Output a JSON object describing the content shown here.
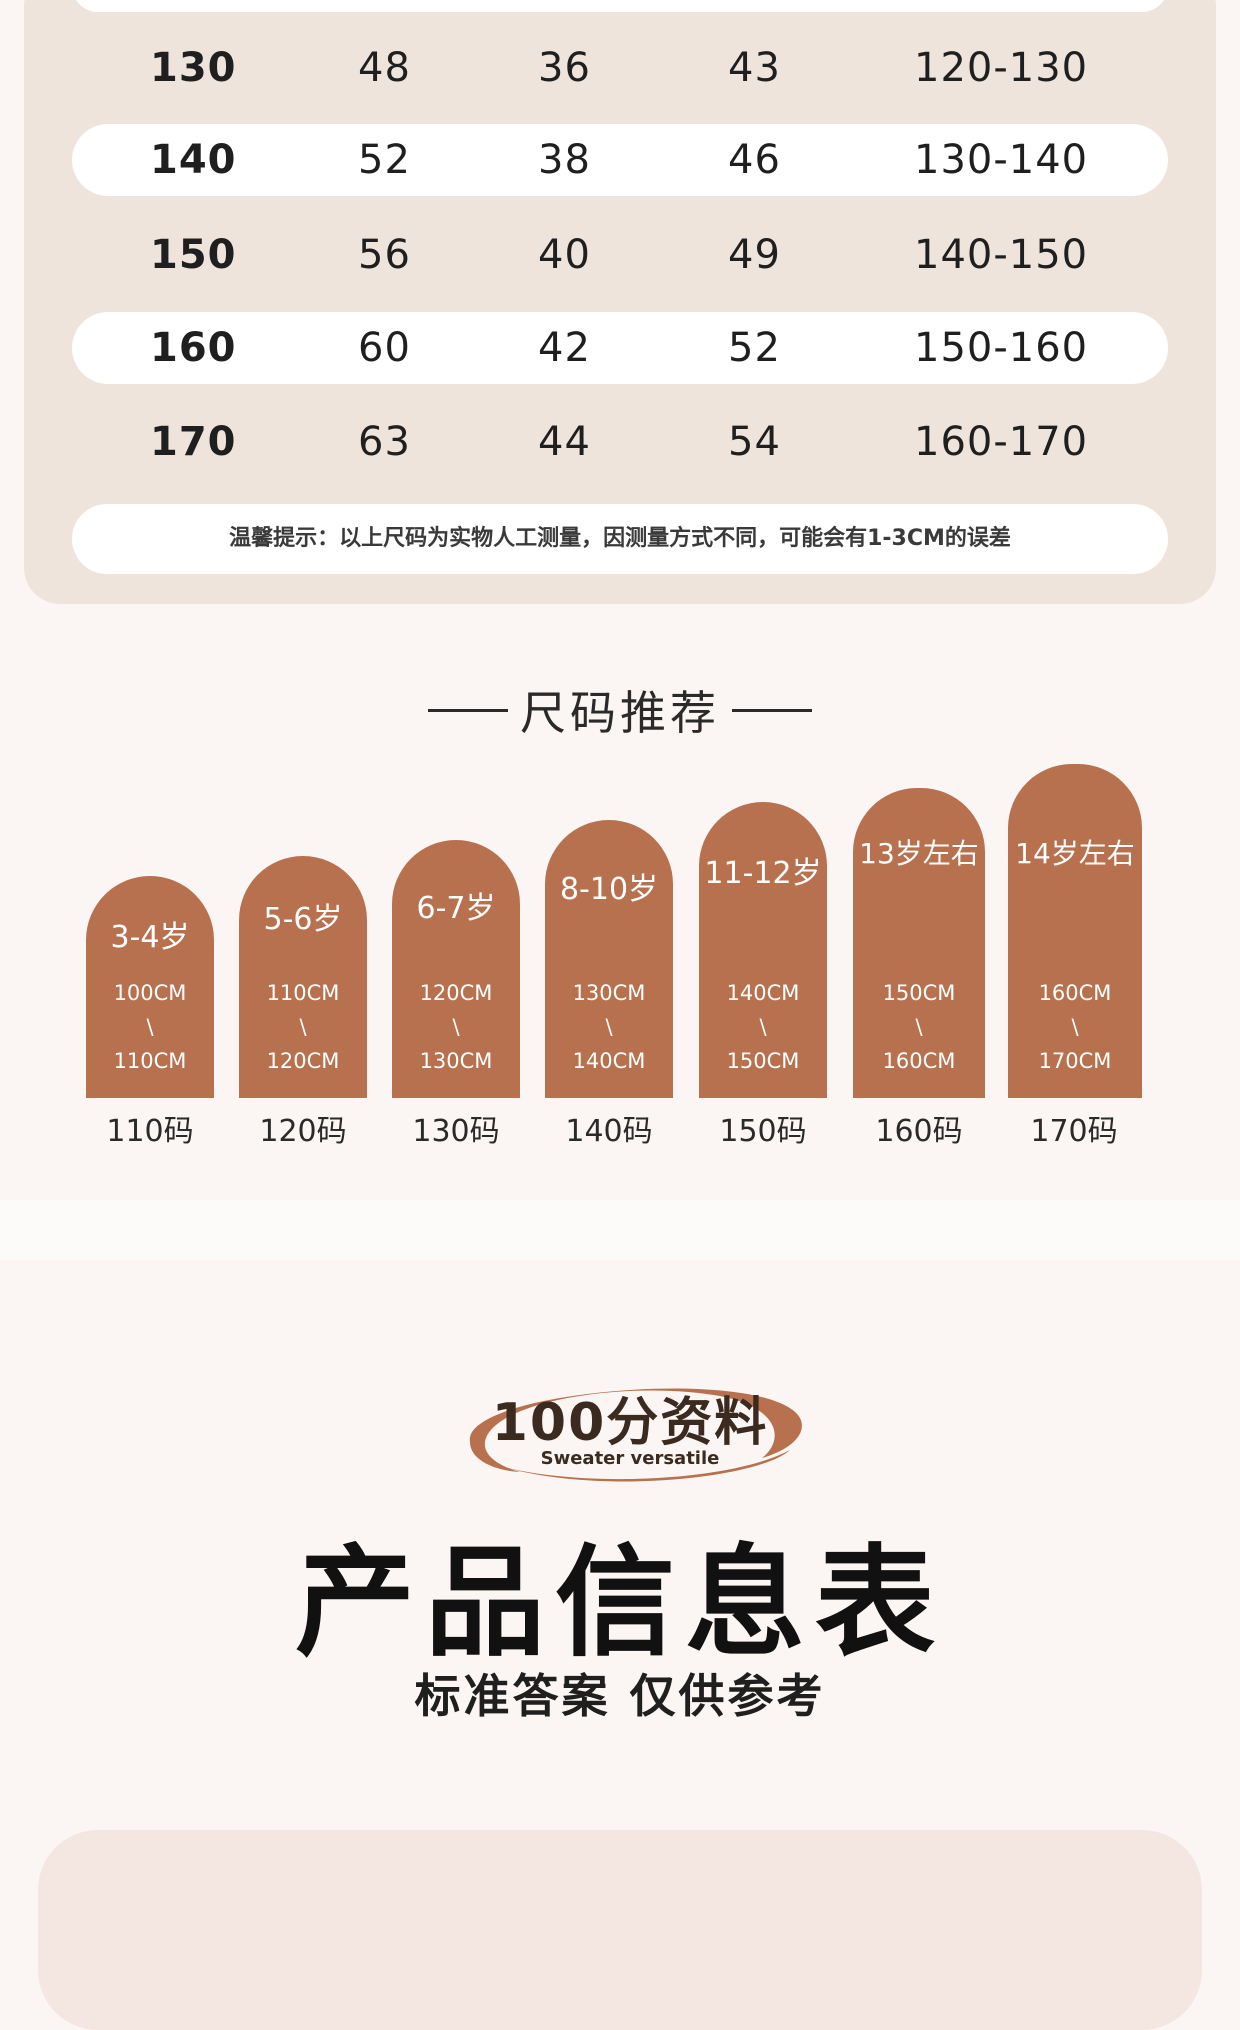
{
  "size_table": {
    "rows": [
      [
        "130",
        "48",
        "36",
        "43",
        "120-130"
      ],
      [
        "140",
        "52",
        "38",
        "46",
        "130-140"
      ],
      [
        "150",
        "56",
        "40",
        "49",
        "140-150"
      ],
      [
        "160",
        "60",
        "42",
        "52",
        "150-160"
      ],
      [
        "170",
        "63",
        "44",
        "54",
        "160-170"
      ]
    ],
    "tip": "温馨提示：以上尺码为实物人工测量，因测量方式不同，可能会有1-3CM的误差"
  },
  "recommend": {
    "title": "尺码推荐",
    "items": [
      {
        "age": "3-4岁",
        "cm_from": "100CM",
        "sep": "\\",
        "cm_to": "110CM",
        "size": "110码"
      },
      {
        "age": "5-6岁",
        "cm_from": "110CM",
        "sep": "\\",
        "cm_to": "120CM",
        "size": "120码"
      },
      {
        "age": "6-7岁",
        "cm_from": "120CM",
        "sep": "\\",
        "cm_to": "130CM",
        "size": "130码"
      },
      {
        "age": "8-10岁",
        "cm_from": "130CM",
        "sep": "\\",
        "cm_to": "140CM",
        "size": "140码"
      },
      {
        "age": "11-12岁",
        "cm_from": "140CM",
        "sep": "\\",
        "cm_to": "150CM",
        "size": "150码"
      },
      {
        "age": "13岁左右",
        "cm_from": "150CM",
        "sep": "\\",
        "cm_to": "160CM",
        "size": "160码"
      },
      {
        "age": "14岁左右",
        "cm_from": "160CM",
        "sep": "\\",
        "cm_to": "170CM",
        "size": "170码"
      }
    ]
  },
  "product_info": {
    "badge_main": "100分资料",
    "badge_sub": "Sweater versatile",
    "title": "产品信息表",
    "subtitle": "标准答案 仅供参考"
  },
  "colors": {
    "card_bg": "#efe4dc",
    "arch_brown": "#b8714e",
    "page_bg": "#fbf6f3",
    "bottom_card": "#f4e6e1"
  }
}
